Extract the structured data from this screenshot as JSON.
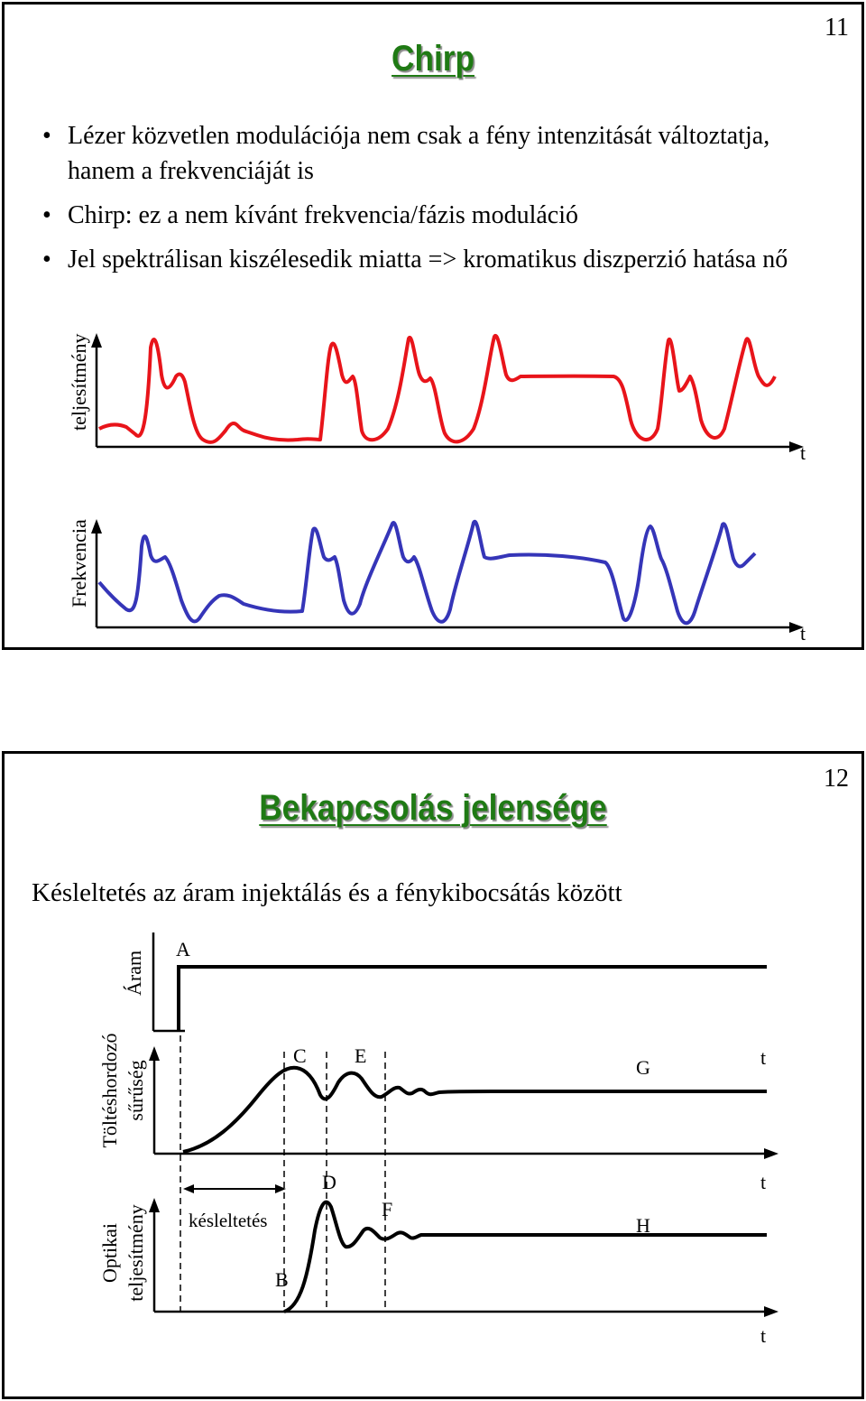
{
  "slide1": {
    "page_number": "11",
    "title": "Chirp",
    "bullets": [
      "Lézer közvetlen modulációja nem csak a fény intenzitását változtatja, hanem a frekvenciáját is",
      "Chirp: ez a nem kívánt frekvencia/fázis moduláció",
      "Jel spektrálisan kiszélesedik miatta => kromatikus diszperzió hatása nő"
    ],
    "figure": {
      "power_ylabel": "teljesítmény",
      "freq_ylabel": "Frekvencia",
      "xlabel": "t",
      "power_color": "#e8141a",
      "freq_color": "#3535b8"
    }
  },
  "slide2": {
    "page_number": "12",
    "title": "Bekapcsolás jelensége",
    "subtitle": "Késleltetés az áram injektálás és a fénykibocsátás között",
    "figure": {
      "current_ylabel": "Áram",
      "carrier_ylabel_line1": "Töltéshordozó",
      "carrier_ylabel_line2": "sűrűség",
      "optical_ylabel_line1": "Optikai",
      "optical_ylabel_line2": "teljesítmény",
      "xlabel": "t",
      "delay_label": "késleltetés",
      "points": [
        "A",
        "B",
        "C",
        "D",
        "E",
        "F",
        "G",
        "H"
      ]
    }
  }
}
